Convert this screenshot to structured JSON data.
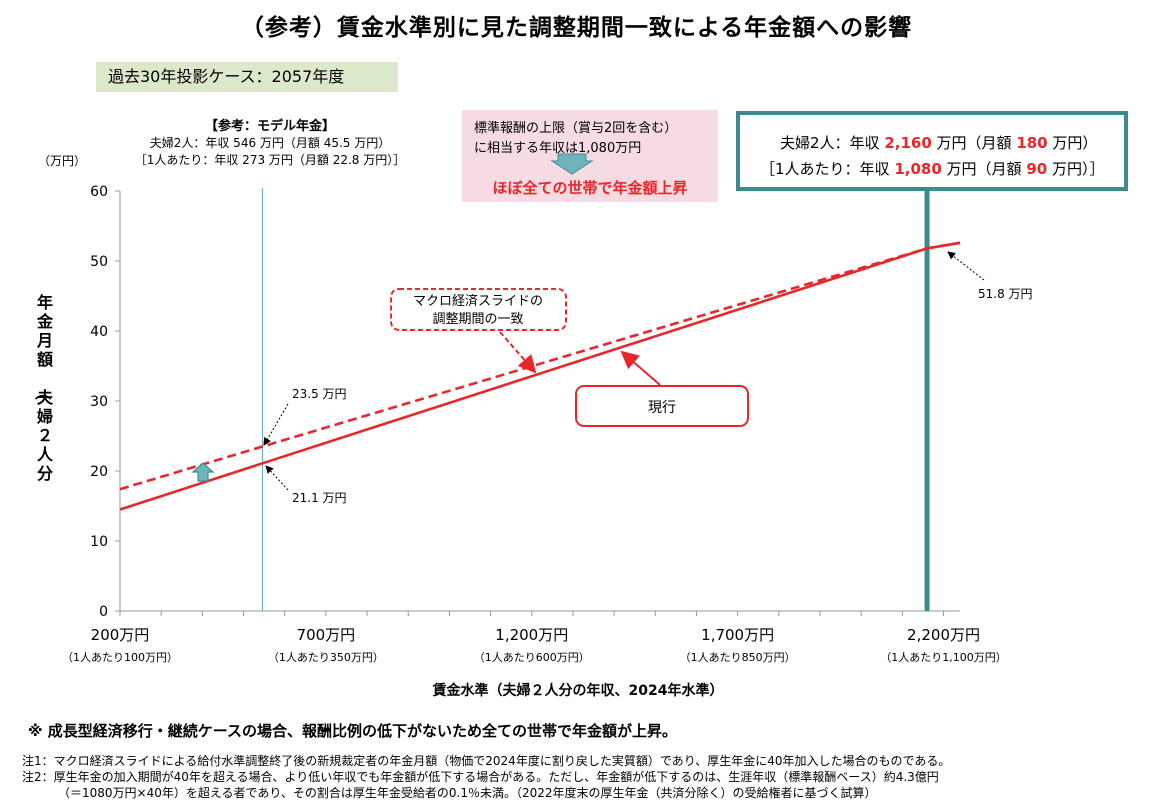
{
  "title": "（参考）賃金水準別に見た調整期間一致による年金額への影響",
  "case_label": "過去30年投影ケース：2057年度",
  "model_pension": {
    "title": "【参考：モデル年金】",
    "line1": "夫婦2人：年収 546 万円（月額 45.5 万円）",
    "line2": "［1人あたり：年収 273 万円（月額 22.8 万円）］"
  },
  "pink_box": {
    "line1": "標準報酬の上限（賞与2回を含む）",
    "line2": "に相当する年収は1,080万円",
    "line3": "ほぼ全ての世帯で年金額上昇",
    "color": "#f6dbe3"
  },
  "teal_box": {
    "l1_a": "夫婦2人：年収 ",
    "l1_v1": "2,160",
    "l1_b": " 万円（月額 ",
    "l1_v2": "180",
    "l1_c": " 万円）",
    "l2_a": "［1人あたり：年収 ",
    "l2_v1": "1,080",
    "l2_b": " 万円（月額 ",
    "l2_v2": "90",
    "l2_c": " 万円）］",
    "border_color": "#3c8c8e"
  },
  "footnote_main": "※ 成長型経済移行・継続ケースの場合、報酬比例の低下がないため全ての世帯で年金額が上昇。",
  "notes": [
    "注1：マクロ経済スライドによる給付水準調整終了後の新規裁定者の年金月額（物価で2024年度に割り戻した実質額）であり、厚生年金に40年加入した場合のものである。",
    "注2：厚生年金の加入期間が40年を超える場合、より低い年収でも年金額が低下する場合がある。ただし、年金額が低下するのは、生涯年収（標準報酬ベース）約4.3億円",
    "（＝1080万円×40年）を超える者であり、その割合は厚生年金受給者の0.1％未満。（2022年度末の厚生年金（共済分除く）の受給権者に基づく試算）"
  ],
  "chart_data": {
    "type": "line",
    "ylabel": "年金月額（夫婦２人分）",
    "yunit": "（万円）",
    "xlabel": "賃金水準（夫婦２人分の年収、2024年水準）",
    "ylim": [
      0,
      60
    ],
    "yticks": [
      "0",
      "10",
      "20",
      "30",
      "40",
      "50",
      "60"
    ],
    "xlim": [
      200,
      2200
    ],
    "xtick_values": [
      200,
      700,
      1200,
      1700,
      2200
    ],
    "xtick_labels": [
      "200万円",
      "700万円",
      "1,200万円",
      "1,700万円",
      "2,200万円"
    ],
    "xtick_sublabels": [
      "（1人あたり100万円）",
      "（1人あたり350万円）",
      "（1人あたり600万円）",
      "（1人あたり850万円）",
      "（1人あたり1,100万円）"
    ],
    "grid": false,
    "series": [
      {
        "name": "現行",
        "style": "solid",
        "color": "#e8272b",
        "x": [
          200,
          546,
          2160,
          2240
        ],
        "y": [
          14.5,
          21.1,
          51.8,
          52.6
        ]
      },
      {
        "name": "マクロ経済スライドの調整期間の一致",
        "style": "dashed",
        "color": "#e8272b",
        "x": [
          200,
          546,
          2160,
          2240
        ],
        "y": [
          17.4,
          23.5,
          51.8,
          52.6
        ]
      }
    ],
    "annotations": {
      "a235": "23.5 万円",
      "a211": "21.1 万円",
      "a518": "51.8 万円"
    },
    "ref_lines": [
      {
        "x": 546,
        "color": "#6fb3bd"
      },
      {
        "x": 2160,
        "color": "#3c8c8e"
      }
    ]
  }
}
